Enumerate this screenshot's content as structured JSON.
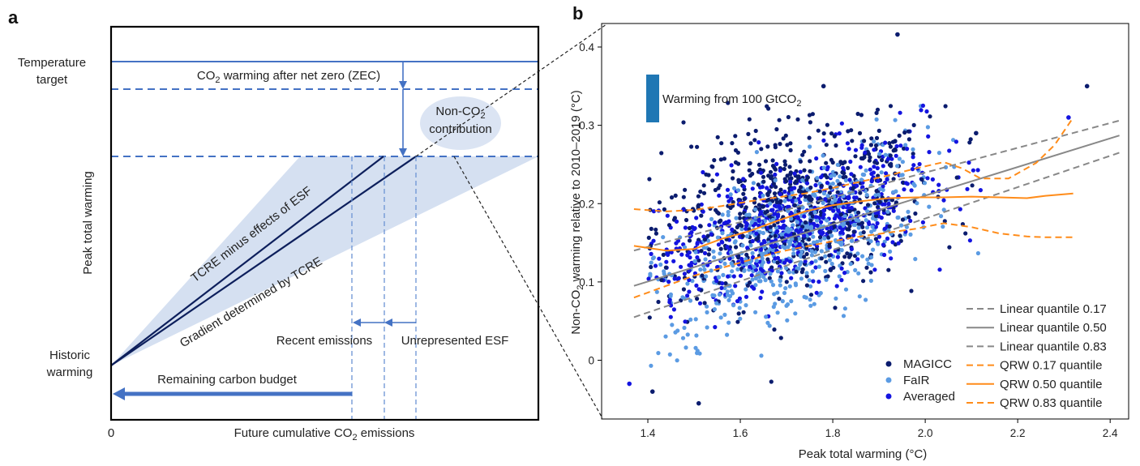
{
  "panel_a": {
    "letter": "a",
    "labels": {
      "temperature_target_1": "Temperature",
      "temperature_target_2": "target",
      "historic_warming_1": "Historic",
      "historic_warming_2": "warming",
      "ylabel": "Peak total warming",
      "xlabel_pre": "Future cumulative CO",
      "xlabel_sub": "2",
      "xlabel_post": " emissions",
      "origin": "0",
      "zec_pre": "CO",
      "zec_sub": "2",
      "zec_post": " warming after net zero (ZEC)",
      "nonco2_1_pre": "Non-CO",
      "nonco2_1_sub": "2",
      "nonco2_2": "contribution",
      "tcre_minus": "TCRE minus effects of ESF",
      "gradient": "Gradient determined by TCRE",
      "recent": "Recent emissions",
      "unrepresented": "Unrepresented ESF",
      "remaining": "Remaining carbon budget"
    }
  },
  "panel_b": {
    "letter": "b",
    "bar_label_pre": "Warming from 100 GtCO",
    "bar_label_sub": "2",
    "chart_data": {
      "type": "scatter",
      "xlabel": "Peak total warming (°C)",
      "ylabel_pre": "Non-CO",
      "ylabel_sub": "2",
      "ylabel_post": " warming relative to 2010–2019 (°C)",
      "xlim": [
        1.3,
        2.44
      ],
      "ylim": [
        -0.075,
        0.43
      ],
      "xticks": [
        1.4,
        1.6,
        1.8,
        2.0,
        2.2,
        2.4
      ],
      "xtick_labels": [
        "1.4",
        "1.6",
        "1.8",
        "2.0",
        "2.2",
        "2.4"
      ],
      "yticks": [
        0,
        0.1,
        0.2,
        0.3,
        0.4
      ],
      "ytick_labels": [
        "0",
        "0.1",
        "0.2",
        "0.3",
        "0.4"
      ],
      "legend_right": [
        {
          "label": "Linear quantile 0.17",
          "color": "#888888",
          "style": "dashed"
        },
        {
          "label": "Linear quantile 0.50",
          "color": "#888888",
          "style": "solid"
        },
        {
          "label": "Linear quantile 0.83",
          "color": "#888888",
          "style": "dashed"
        },
        {
          "label": "QRW 0.17 quantile",
          "color": "#ff8c1a",
          "style": "dashed"
        },
        {
          "label": "QRW 0.50 quantile",
          "color": "#ff8c1a",
          "style": "solid"
        },
        {
          "label": "QRW 0.83 quantile",
          "color": "#ff8c1a",
          "style": "dashed"
        }
      ],
      "legend_points": [
        {
          "label": "MAGICC",
          "color": "#0b1c6e"
        },
        {
          "label": "FaIR",
          "color": "#5b9be3"
        },
        {
          "label": "Averaged",
          "color": "#1414e0"
        }
      ],
      "series": [
        {
          "name": "Linear quantile 0.17",
          "style": "dashed",
          "color": "#888888",
          "x": [
            1.37,
            2.42
          ],
          "y": [
            0.055,
            0.265
          ]
        },
        {
          "name": "Linear quantile 0.50",
          "style": "solid",
          "color": "#888888",
          "x": [
            1.37,
            2.42
          ],
          "y": [
            0.095,
            0.287
          ]
        },
        {
          "name": "Linear quantile 0.83",
          "style": "dashed",
          "color": "#888888",
          "x": [
            1.37,
            2.42
          ],
          "y": [
            0.14,
            0.306
          ]
        },
        {
          "name": "QRW 0.17 quantile",
          "style": "dashed",
          "color": "#ff8c1a",
          "x": [
            1.37,
            1.44,
            1.5,
            1.56,
            1.62,
            1.68,
            1.74,
            1.8,
            1.86,
            1.92,
            1.98,
            2.04,
            2.1,
            2.16,
            2.22,
            2.26,
            2.32
          ],
          "y": [
            0.08,
            0.095,
            0.108,
            0.118,
            0.128,
            0.138,
            0.145,
            0.152,
            0.158,
            0.163,
            0.168,
            0.175,
            0.17,
            0.162,
            0.158,
            0.157,
            0.157
          ]
        },
        {
          "name": "QRW 0.50 quantile",
          "style": "solid",
          "color": "#ff8c1a",
          "x": [
            1.37,
            1.44,
            1.5,
            1.56,
            1.62,
            1.68,
            1.74,
            1.8,
            1.86,
            1.92,
            1.98,
            2.04,
            2.1,
            2.16,
            2.22,
            2.26,
            2.32
          ],
          "y": [
            0.146,
            0.14,
            0.142,
            0.155,
            0.165,
            0.178,
            0.19,
            0.198,
            0.203,
            0.207,
            0.208,
            0.208,
            0.209,
            0.208,
            0.207,
            0.21,
            0.213
          ]
        },
        {
          "name": "QRW 0.83 quantile",
          "style": "dashed",
          "color": "#ff8c1a",
          "x": [
            1.37,
            1.44,
            1.5,
            1.56,
            1.62,
            1.68,
            1.74,
            1.8,
            1.86,
            1.92,
            1.98,
            2.04,
            2.08,
            2.12,
            2.18,
            2.24,
            2.28,
            2.32
          ],
          "y": [
            0.193,
            0.19,
            0.192,
            0.197,
            0.203,
            0.208,
            0.213,
            0.22,
            0.228,
            0.236,
            0.245,
            0.253,
            0.245,
            0.232,
            0.232,
            0.252,
            0.275,
            0.31
          ]
        }
      ],
      "outlier_points": [
        {
          "x": 1.94,
          "y": 0.416,
          "group": "MAGICC"
        },
        {
          "x": 2.35,
          "y": 0.35,
          "group": "MAGICC"
        },
        {
          "x": 1.51,
          "y": -0.055,
          "group": "MAGICC"
        },
        {
          "x": 1.41,
          "y": -0.04,
          "group": "MAGICC"
        },
        {
          "x": 1.36,
          "y": -0.03,
          "group": "Averaged"
        },
        {
          "x": 2.31,
          "y": 0.31,
          "group": "Averaged"
        },
        {
          "x": 2.11,
          "y": 0.29,
          "group": "MAGICC"
        },
        {
          "x": 1.78,
          "y": 0.35,
          "group": "MAGICC"
        }
      ],
      "scatter_generation": {
        "n_per_group": 620,
        "x_mean": 1.72,
        "x_sd": 0.15,
        "x_min": 1.4,
        "x_max": 2.12,
        "groups": [
          {
            "name": "MAGICC",
            "color": "#0b1c6e",
            "intercept": 0.2,
            "slope": 0.1,
            "noise": 0.055
          },
          {
            "name": "FaIR",
            "color": "#5b9be3",
            "intercept": 0.155,
            "slope": 0.24,
            "noise": 0.045
          },
          {
            "name": "Averaged",
            "color": "#1414e0",
            "intercept": 0.178,
            "slope": 0.17,
            "noise": 0.04
          }
        ]
      }
    }
  }
}
